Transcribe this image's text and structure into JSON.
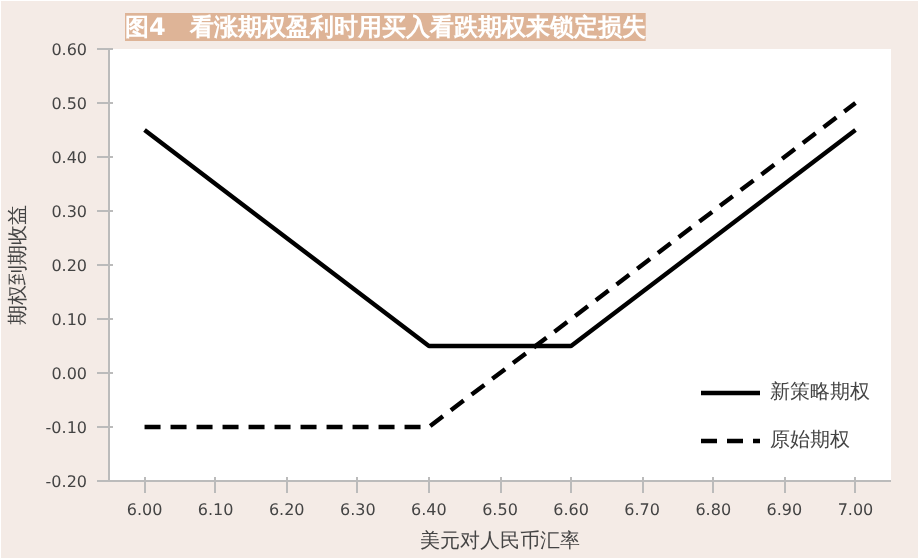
{
  "chart_data": {
    "type": "line",
    "title": "图4　看涨期权盈利时用买入看跌期权来锁定损失",
    "xlabel": "美元对人民币汇率",
    "ylabel": "期权到期收益",
    "series": [
      {
        "name": "新策略期权",
        "color": "#000000",
        "line_style": "solid",
        "x": [
          6.0,
          6.4,
          6.6,
          7.0
        ],
        "values": [
          0.45,
          0.05,
          0.05,
          0.45
        ]
      },
      {
        "name": "原始期权",
        "color": "#000000",
        "line_style": "dashed",
        "x": [
          6.0,
          6.4,
          7.0
        ],
        "values": [
          -0.1,
          -0.1,
          0.5
        ]
      }
    ],
    "xlim": [
      5.95,
      7.05
    ],
    "xticks": [
      {
        "value": 6.0,
        "label": "6.00"
      },
      {
        "value": 6.1,
        "label": "6.10"
      },
      {
        "value": 6.2,
        "label": "6.20"
      },
      {
        "value": 6.3,
        "label": "6.30"
      },
      {
        "value": 6.4,
        "label": "6.40"
      },
      {
        "value": 6.5,
        "label": "6.50"
      },
      {
        "value": 6.6,
        "label": "6.60"
      },
      {
        "value": 6.7,
        "label": "6.70"
      },
      {
        "value": 6.8,
        "label": "6.80"
      },
      {
        "value": 6.9,
        "label": "6.90"
      },
      {
        "value": 7.0,
        "label": "7.00"
      }
    ],
    "ylim": [
      -0.2,
      0.6
    ],
    "yticks": [
      {
        "value": -0.2,
        "label": "-0.20"
      },
      {
        "value": -0.1,
        "label": "-0.10"
      },
      {
        "value": 0,
        "label": "0.00"
      },
      {
        "value": 0.1,
        "label": "0.10"
      },
      {
        "value": 0.2,
        "label": "0.20"
      },
      {
        "value": 0.3,
        "label": "0.30"
      },
      {
        "value": 0.4,
        "label": "0.40"
      },
      {
        "value": 0.5,
        "label": "0.50"
      },
      {
        "value": 0.6,
        "label": "0.60"
      }
    ],
    "grid": false,
    "legend": "bottom right",
    "marker": "none"
  }
}
